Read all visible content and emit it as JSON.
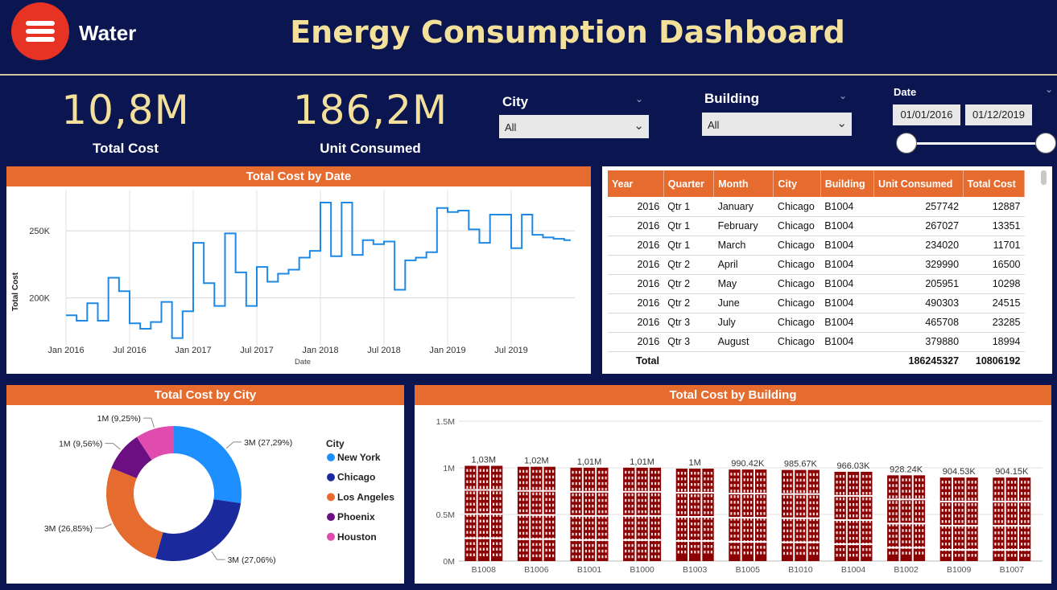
{
  "header": {
    "app_title": "Water",
    "dashboard_title": "Energy Consumption Dashboard",
    "menu_icon": "hamburger-menu-icon"
  },
  "kpis": [
    {
      "value": "10,8M",
      "label": "Total Cost"
    },
    {
      "value": "186,2M",
      "label": "Unit Consumed"
    }
  ],
  "slicers": {
    "city": {
      "title": "City",
      "value": "All"
    },
    "building": {
      "title": "Building",
      "value": "All"
    },
    "date": {
      "title": "Date",
      "start": "01/01/2016",
      "end": "01/12/2019",
      "range_fraction": [
        0,
        1
      ]
    }
  },
  "colors": {
    "background": "#0b1550",
    "accent_orange": "#e56b2f",
    "title_gold": "#f2e09b",
    "line_blue": "#1e88e5",
    "bar_maroon": "#8b0000"
  },
  "line_panel": {
    "title": "Total Cost by Date"
  },
  "table_panel": {
    "columns": [
      "Year",
      "Quarter",
      "Month",
      "City",
      "Building",
      "Unit Consumed",
      "Total Cost"
    ],
    "rows": [
      [
        "2016",
        "Qtr 1",
        "January",
        "Chicago",
        "B1004",
        "257742",
        "12887"
      ],
      [
        "2016",
        "Qtr 1",
        "February",
        "Chicago",
        "B1004",
        "267027",
        "13351"
      ],
      [
        "2016",
        "Qtr 1",
        "March",
        "Chicago",
        "B1004",
        "234020",
        "11701"
      ],
      [
        "2016",
        "Qtr 2",
        "April",
        "Chicago",
        "B1004",
        "329990",
        "16500"
      ],
      [
        "2016",
        "Qtr 2",
        "May",
        "Chicago",
        "B1004",
        "205951",
        "10298"
      ],
      [
        "2016",
        "Qtr 2",
        "June",
        "Chicago",
        "B1004",
        "490303",
        "24515"
      ],
      [
        "2016",
        "Qtr 3",
        "July",
        "Chicago",
        "B1004",
        "465708",
        "23285"
      ],
      [
        "2016",
        "Qtr 3",
        "August",
        "Chicago",
        "B1004",
        "379880",
        "18994"
      ]
    ],
    "total": {
      "label": "Total",
      "unit_consumed": "186245327",
      "total_cost": "10806192"
    }
  },
  "donut_panel": {
    "title": "Total Cost by City"
  },
  "bar_panel": {
    "title": "Total Cost by Building"
  },
  "chart_data": [
    {
      "type": "line",
      "title": "Total Cost by Date",
      "xlabel": "Date",
      "ylabel": "Total Cost",
      "x_tick_labels": [
        "Jan 2016",
        "Jul 2016",
        "Jan 2017",
        "Jul 2017",
        "Jan 2018",
        "Jul 2018",
        "Jan 2019",
        "Jul 2019"
      ],
      "y_tick_labels": [
        "200K",
        "250K"
      ],
      "ylim": [
        165000,
        280000
      ],
      "grid": true,
      "series": [
        {
          "x": [
            "2016-01",
            "2016-02",
            "2016-03",
            "2016-04",
            "2016-05",
            "2016-06",
            "2016-07",
            "2016-08",
            "2016-09",
            "2016-10",
            "2016-11",
            "2016-12",
            "2017-01",
            "2017-02",
            "2017-03",
            "2017-04",
            "2017-05",
            "2017-06",
            "2017-07",
            "2017-08",
            "2017-09",
            "2017-10",
            "2017-11",
            "2017-12",
            "2018-01",
            "2018-02",
            "2018-03",
            "2018-04",
            "2018-05",
            "2018-06",
            "2018-07",
            "2018-08",
            "2018-09",
            "2018-10",
            "2018-11",
            "2018-12",
            "2019-01",
            "2019-02",
            "2019-03",
            "2019-04",
            "2019-05",
            "2019-06",
            "2019-07",
            "2019-08",
            "2019-09",
            "2019-10",
            "2019-11",
            "2019-12"
          ],
          "values": [
            187000,
            183000,
            196000,
            183000,
            215000,
            205000,
            181000,
            177000,
            182000,
            197000,
            170000,
            190000,
            241000,
            211000,
            194000,
            248000,
            219000,
            194000,
            223000,
            212000,
            218000,
            221000,
            230000,
            235000,
            271000,
            231000,
            271000,
            232000,
            243000,
            240000,
            242000,
            206000,
            228000,
            230000,
            234000,
            267000,
            264000,
            265000,
            251000,
            241000,
            262000,
            262000,
            237000,
            262000,
            247000,
            245000,
            244000,
            243000
          ]
        }
      ]
    },
    {
      "type": "pie",
      "title": "Total Cost by City",
      "legend_title": "City",
      "legend_position": "right",
      "slices": [
        {
          "name": "New York",
          "value": 27.29,
          "label": "3M (27,29%)",
          "color": "#1e8fff"
        },
        {
          "name": "Chicago",
          "value": 27.06,
          "label": "3M (27,06%)",
          "color": "#1a2a9c"
        },
        {
          "name": "Los Angeles",
          "value": 26.85,
          "label": "3M (26,85%)",
          "color": "#e56b2f"
        },
        {
          "name": "Phoenix",
          "value": 9.56,
          "label": "1M (9,56%)",
          "color": "#6b0f82"
        },
        {
          "name": "Houston",
          "value": 9.25,
          "label": "1M (9,25%)",
          "color": "#e04cad"
        }
      ]
    },
    {
      "type": "bar",
      "title": "Total Cost by Building",
      "categories": [
        "B1008",
        "B1006",
        "B1001",
        "B1000",
        "B1003",
        "B1005",
        "B1010",
        "B1004",
        "B1002",
        "B1009",
        "B1007"
      ],
      "values": [
        1030000,
        1020000,
        1010000,
        1010000,
        1000000,
        990420,
        985670,
        966030,
        928240,
        904530,
        904150
      ],
      "data_labels": [
        "1,03M",
        "1,02M",
        "1,01M",
        "1,01M",
        "1M",
        "990.42K",
        "985.67K",
        "966.03K",
        "928.24K",
        "904.53K",
        "904.15K"
      ],
      "y_tick_labels": [
        "0M",
        "0.5M",
        "1M",
        "1.5M"
      ],
      "ylim": [
        0,
        1500000
      ],
      "grid": true
    }
  ]
}
